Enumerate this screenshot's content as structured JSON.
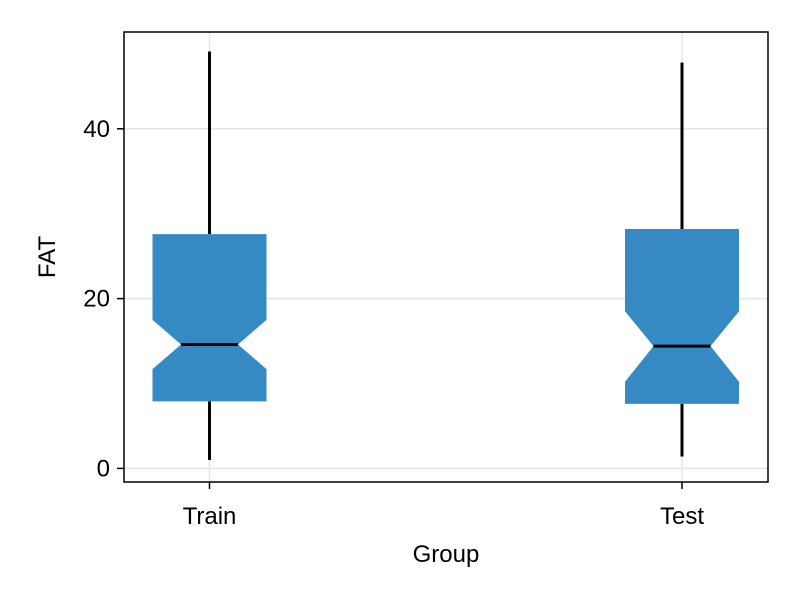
{
  "chart_data": {
    "type": "boxplot",
    "title": "",
    "xlabel": "Group",
    "ylabel": "FAT",
    "categories": [
      "Train",
      "Test"
    ],
    "ylim": [
      -1.6,
      51.4
    ],
    "yticks": [
      0,
      20,
      40
    ],
    "grid": true,
    "notched": true,
    "box_color": "#2a84c1",
    "boxes": [
      {
        "category": "Train",
        "whisker_low": 1.0,
        "q1": 7.9,
        "notch_low": 11.7,
        "median": 14.6,
        "notch_high": 17.5,
        "q3": 27.6,
        "whisker_high": 49.1
      },
      {
        "category": "Test",
        "whisker_low": 1.4,
        "q1": 7.6,
        "notch_low": 10.2,
        "median": 14.4,
        "notch_high": 18.5,
        "q3": 28.2,
        "whisker_high": 47.8
      }
    ]
  }
}
